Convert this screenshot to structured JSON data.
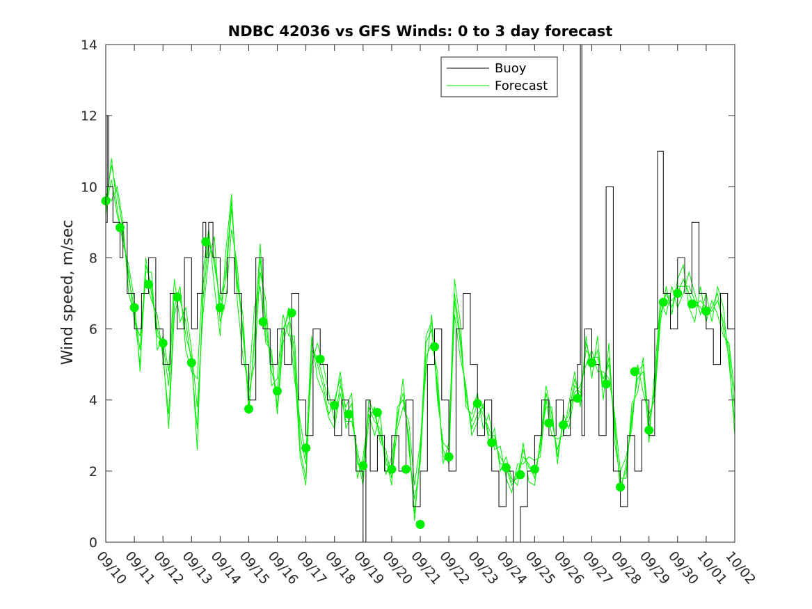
{
  "chart_data": {
    "type": "line",
    "title": "NDBC 42036 vs GFS Winds: 0 to 3 day forecast",
    "xlabel": "",
    "ylabel": "Wind speed, m/sec",
    "ylim": [
      0,
      14
    ],
    "yticks": [
      0,
      2,
      4,
      6,
      8,
      10,
      12,
      14
    ],
    "xlim": [
      0,
      22
    ],
    "xticks": [
      "09/10",
      "09/11",
      "09/12",
      "09/13",
      "09/14",
      "09/15",
      "09/16",
      "09/17",
      "09/18",
      "09/19",
      "09/20",
      "09/21",
      "09/22",
      "09/23",
      "09/24",
      "09/25",
      "09/26",
      "09/27",
      "09/28",
      "09/29",
      "09/30",
      "10/01",
      "10/02"
    ],
    "legend": {
      "position": "top-right",
      "entries": [
        "Buoy",
        "Forecast"
      ]
    },
    "colors": {
      "buoy": "#000000",
      "forecast": "#00ee00",
      "dots": "#00ee00",
      "axis": "#262626"
    },
    "buoy": {
      "name": "Buoy",
      "x": [
        0,
        0.05,
        0.1,
        0.25,
        0.5,
        0.6,
        0.75,
        1.0,
        1.25,
        1.5,
        1.75,
        2.0,
        2.25,
        2.5,
        2.75,
        3.0,
        3.2,
        3.4,
        3.5,
        3.6,
        3.75,
        4.0,
        4.25,
        4.5,
        4.75,
        5.0,
        5.25,
        5.5,
        5.75,
        6.0,
        6.25,
        6.5,
        6.75,
        7.0,
        7.25,
        7.5,
        7.75,
        8.0,
        8.25,
        8.5,
        8.75,
        9.0,
        9.1,
        9.25,
        9.5,
        9.75,
        10.0,
        10.25,
        10.5,
        10.75,
        11.0,
        11.25,
        11.5,
        11.75,
        12.0,
        12.25,
        12.5,
        12.75,
        13.0,
        13.25,
        13.5,
        13.75,
        14.0,
        14.25,
        14.5,
        14.75,
        15.0,
        15.25,
        15.5,
        15.75,
        16.0,
        16.25,
        16.5,
        16.6,
        16.65,
        16.75,
        17.0,
        17.25,
        17.5,
        17.75,
        18.0,
        18.25,
        18.5,
        18.75,
        19.0,
        19.2,
        19.3,
        19.5,
        19.75,
        20.0,
        20.25,
        20.5,
        20.75,
        21.0,
        21.25,
        21.5,
        21.75,
        22.0
      ],
      "values": [
        9,
        12,
        10,
        9,
        8,
        9,
        7,
        6,
        7,
        8,
        6,
        5,
        7,
        6,
        8,
        6,
        7,
        9,
        8,
        9,
        8,
        7,
        8,
        7,
        5,
        4,
        8,
        6,
        5,
        6,
        5,
        7,
        4,
        3,
        6,
        5,
        4,
        3,
        4,
        3,
        2,
        0,
        4,
        2,
        3,
        2,
        3,
        2,
        4,
        1,
        2,
        5,
        6,
        4,
        2,
        6,
        7,
        5,
        3,
        4,
        2,
        1,
        2,
        0,
        1,
        2,
        3,
        4,
        3,
        4,
        3,
        4,
        5,
        14,
        3,
        6,
        5,
        3,
        10,
        2,
        1,
        3,
        2,
        4,
        3,
        6,
        11,
        7,
        6,
        8,
        7,
        9,
        7,
        6,
        5,
        7,
        6,
        4
      ]
    },
    "forecast": {
      "name": "Forecast",
      "x": [
        0,
        0.2,
        0.4,
        0.6,
        0.8,
        1.0,
        1.2,
        1.4,
        1.6,
        1.8,
        2.0,
        2.2,
        2.4,
        2.6,
        2.8,
        3.0,
        3.2,
        3.4,
        3.6,
        3.8,
        4.0,
        4.2,
        4.4,
        4.6,
        4.8,
        5.0,
        5.2,
        5.4,
        5.6,
        5.8,
        6.0,
        6.2,
        6.4,
        6.6,
        6.8,
        7.0,
        7.2,
        7.4,
        7.6,
        7.8,
        8.0,
        8.2,
        8.4,
        8.6,
        8.8,
        9.0,
        9.2,
        9.4,
        9.6,
        9.8,
        10.0,
        10.2,
        10.4,
        10.6,
        10.8,
        11.0,
        11.2,
        11.4,
        11.6,
        11.8,
        12.0,
        12.2,
        12.4,
        12.6,
        12.8,
        13.0,
        13.2,
        13.4,
        13.6,
        13.8,
        14.0,
        14.2,
        14.4,
        14.6,
        14.8,
        15.0,
        15.2,
        15.4,
        15.6,
        15.8,
        16.0,
        16.2,
        16.4,
        16.6,
        16.8,
        17.0,
        17.2,
        17.4,
        17.6,
        17.8,
        18.0,
        18.2,
        18.4,
        18.6,
        18.8,
        19.0,
        19.2,
        19.4,
        19.6,
        19.8,
        20.0,
        20.2,
        20.4,
        20.6,
        20.8,
        21.0,
        21.2,
        21.4,
        21.6,
        21.8,
        22.0
      ],
      "runs": [
        [
          9.6,
          10.6,
          9.8,
          8.8,
          7.4,
          6.6,
          5.4,
          7.8,
          7.2,
          5.8,
          5.6,
          4.4,
          7.0,
          6.8,
          6.2,
          5.0,
          3.2,
          6.8,
          8.4,
          8.0,
          6.6,
          7.4,
          9.4,
          7.4,
          6.0,
          3.8,
          5.6,
          8.0,
          6.2,
          4.8,
          4.2,
          6.0,
          6.4,
          5.4,
          2.6,
          1.8,
          5.4,
          5.2,
          4.6,
          3.9,
          3.8,
          4.8,
          3.6,
          3.9,
          2.2,
          2.1,
          3.8,
          3.4,
          3.2,
          2.2,
          2.0,
          3.6,
          4.2,
          2.8,
          0.8,
          2.4,
          5.6,
          6.0,
          4.4,
          2.4,
          2.4,
          7.0,
          5.8,
          4.0,
          3.4,
          3.9,
          3.6,
          3.2,
          2.8,
          2.4,
          2.1,
          1.6,
          1.9,
          2.6,
          2.1,
          2.0,
          2.6,
          4.2,
          3.4,
          2.6,
          3.3,
          3.6,
          4.6,
          4.0,
          5.6,
          5.0,
          5.4,
          4.4,
          5.2,
          3.2,
          1.6,
          2.0,
          3.6,
          4.6,
          4.8,
          3.1,
          4.4,
          6.6,
          6.8,
          6.8,
          7.0,
          7.4,
          7.0,
          6.6,
          6.8,
          6.6,
          6.5,
          6.8,
          6.2,
          5.4,
          3.8
        ],
        [
          9.4,
          10.2,
          9.2,
          8.6,
          7.6,
          6.2,
          5.8,
          7.4,
          6.8,
          6.4,
          5.2,
          3.6,
          6.6,
          7.2,
          5.4,
          4.8,
          4.6,
          7.6,
          8.8,
          7.2,
          5.8,
          8.2,
          9.8,
          6.8,
          5.2,
          4.4,
          6.6,
          7.2,
          5.6,
          5.4,
          3.6,
          5.6,
          6.2,
          4.6,
          3.4,
          2.4,
          5.8,
          4.6,
          4.2,
          3.5,
          3.2,
          4.2,
          3.4,
          3.4,
          2.6,
          1.8,
          3.4,
          3.8,
          2.8,
          2.6,
          1.8,
          3.2,
          3.8,
          3.4,
          1.6,
          2.8,
          4.8,
          6.4,
          4.0,
          2.8,
          2.6,
          6.4,
          5.2,
          4.4,
          3.0,
          3.4,
          3.9,
          2.8,
          3.2,
          2.0,
          2.4,
          1.8,
          1.6,
          2.8,
          1.7,
          1.6,
          2.9,
          3.8,
          3.8,
          2.2,
          3.6,
          3.2,
          4.2,
          4.4,
          5.0,
          5.4,
          4.8,
          4.8,
          4.6,
          3.6,
          2.0,
          2.4,
          3.2,
          5.0,
          4.2,
          3.6,
          4.0,
          6.2,
          7.2,
          6.4,
          7.4,
          7.8,
          6.6,
          6.2,
          7.2,
          6.2,
          6.8,
          6.4,
          5.8,
          5.6,
          4.2
        ],
        [
          9.8,
          9.6,
          10.0,
          9.0,
          7.0,
          6.4,
          5.0,
          7.6,
          7.6,
          5.4,
          5.8,
          4.8,
          7.4,
          6.2,
          6.6,
          5.4,
          3.8,
          6.4,
          8.0,
          8.6,
          6.2,
          6.8,
          8.8,
          7.8,
          5.8,
          4.2,
          5.0,
          7.6,
          6.8,
          4.4,
          4.6,
          6.4,
          5.8,
          5.8,
          3.0,
          2.2,
          5.0,
          5.6,
          5.0,
          4.2,
          3.4,
          4.4,
          3.8,
          4.2,
          1.8,
          2.4,
          3.6,
          3.0,
          3.6,
          1.9,
          2.4,
          3.4,
          4.6,
          2.6,
          1.2,
          2.2,
          5.2,
          5.6,
          4.8,
          2.2,
          2.8,
          7.4,
          6.2,
          3.8,
          3.6,
          4.2,
          3.2,
          3.6,
          2.6,
          2.7,
          1.8,
          1.4,
          2.2,
          2.2,
          2.4,
          2.3,
          2.4,
          4.0,
          3.0,
          2.9,
          3.0,
          3.9,
          4.8,
          3.8,
          5.8,
          4.6,
          5.8,
          4.0,
          5.6,
          2.8,
          1.8,
          1.8,
          3.9,
          4.2,
          5.2,
          2.8,
          4.8,
          6.8,
          6.4,
          7.2,
          6.6,
          7.0,
          7.6,
          7.0,
          6.4,
          7.0,
          6.2,
          7.2,
          6.6,
          5.0,
          3.4
        ],
        [
          9.2,
          10.8,
          9.4,
          8.4,
          7.8,
          6.8,
          4.8,
          8.0,
          7.0,
          6.0,
          5.4,
          3.2,
          6.4,
          7.0,
          5.8,
          5.2,
          2.6,
          7.2,
          8.6,
          7.8,
          6.8,
          7.6,
          9.6,
          7.2,
          6.4,
          3.6,
          5.8,
          8.4,
          5.8,
          5.2,
          3.8,
          5.8,
          6.6,
          5.0,
          2.4,
          1.6,
          5.6,
          5.0,
          4.4,
          3.6,
          4.0,
          4.6,
          3.2,
          3.6,
          2.4,
          1.6,
          4.0,
          3.6,
          3.0,
          2.4,
          1.6,
          3.8,
          4.0,
          3.0,
          0.6,
          2.6,
          5.8,
          6.2,
          4.2,
          2.6,
          2.2,
          6.8,
          5.6,
          4.2,
          3.2,
          3.6,
          3.8,
          3.0,
          3.0,
          2.2,
          2.2,
          1.7,
          1.8,
          2.4,
          2.2,
          1.8,
          2.8,
          4.4,
          3.6,
          2.4,
          3.4,
          3.4,
          4.4,
          4.2,
          5.4,
          5.2,
          5.2,
          4.6,
          5.0,
          3.4,
          1.4,
          2.2,
          3.4,
          4.8,
          5.0,
          3.4,
          4.2,
          6.4,
          7.0,
          6.6,
          7.2,
          7.2,
          7.2,
          6.8,
          6.6,
          6.4,
          6.6,
          7.0,
          6.0,
          5.2,
          3.0
        ]
      ]
    },
    "daily_points": {
      "x": [
        0,
        0.5,
        1,
        1.5,
        2,
        2.5,
        3,
        3.5,
        4,
        5,
        5.5,
        6,
        6.5,
        7,
        7.5,
        8,
        8.5,
        9,
        9.5,
        10,
        10.5,
        11,
        11.5,
        12,
        13,
        13.5,
        14,
        14.5,
        15,
        15.5,
        16,
        16.5,
        17,
        17.5,
        18,
        18.5,
        19,
        19.5,
        20,
        20.5,
        21
      ],
      "values": [
        9.6,
        8.85,
        6.6,
        7.25,
        5.6,
        6.9,
        5.05,
        8.45,
        6.6,
        3.75,
        6.2,
        4.25,
        6.45,
        2.65,
        5.15,
        3.85,
        3.6,
        2.15,
        3.65,
        2.05,
        2.05,
        0.5,
        5.5,
        2.4,
        3.9,
        2.8,
        2.1,
        1.9,
        2.05,
        3.35,
        3.3,
        4.05,
        5.05,
        4.45,
        1.55,
        4.8,
        3.15,
        6.75,
        7.0,
        6.7,
        6.5
      ]
    }
  }
}
